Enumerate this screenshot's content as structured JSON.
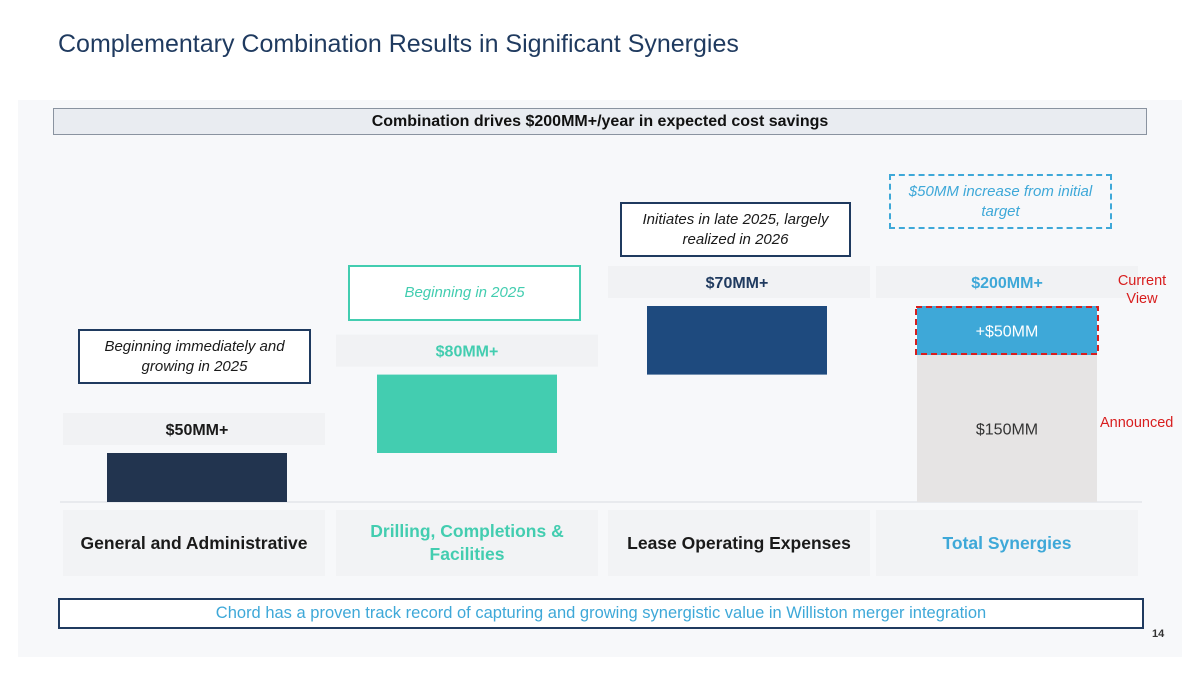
{
  "page": {
    "title": "Complementary Combination Results in Significant Synergies",
    "banner": "Combination drives $200MM+/year in expected cost savings",
    "footer": "Chord has a proven track record of capturing and growing synergistic value in Williston merger integration",
    "page_number": "14"
  },
  "callouts": {
    "ga": "Beginning immediately and growing in 2025",
    "dcf": "Beginning in 2025",
    "loe": "Initiates in late 2025, largely realized in 2026",
    "total": "$50MM increase from initial target"
  },
  "annotations": {
    "current_view": "Current View",
    "announced": "Announced"
  },
  "colors": {
    "ga": "#22344f",
    "dcf": "#43cdb0",
    "loe": "#1e4a7e",
    "announced": "#e6e4e4",
    "increase": "#3ea8d8",
    "dashed_highlight": "#d81e1e",
    "title": "#1f3a5f"
  },
  "chart_data": {
    "type": "bar",
    "subtype": "waterfall",
    "categories": [
      "General and Administrative",
      "Drilling, Completions & Facilities",
      "Lease Operating Expenses",
      "Total Synergies"
    ],
    "bars": [
      {
        "category": "General and Administrative",
        "base": 0,
        "value": 50,
        "label": "$50MM+"
      },
      {
        "category": "Drilling, Completions & Facilities",
        "base": 50,
        "value": 80,
        "label": "$80MM+"
      },
      {
        "category": "Lease Operating Expenses",
        "base": 130,
        "value": 70,
        "label": "$70MM+"
      },
      {
        "category": "Total Synergies",
        "base": 0,
        "value": 200,
        "label": "$200MM+",
        "segments": [
          {
            "name": "Announced",
            "value": 150,
            "label": "$150MM"
          },
          {
            "name": "Current View",
            "value": 50,
            "label": "+$50MM"
          }
        ]
      }
    ],
    "unit": "$MM",
    "ylim": [
      0,
      200
    ]
  }
}
